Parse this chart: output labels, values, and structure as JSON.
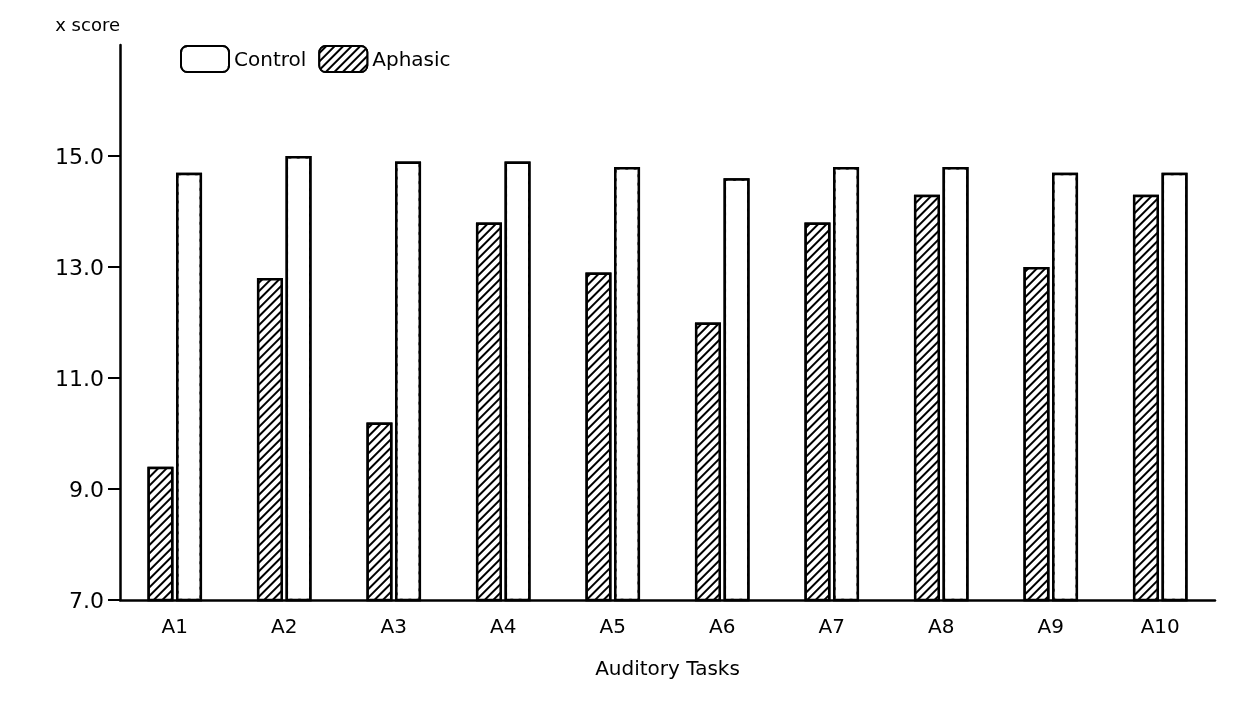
{
  "chart_data": {
    "type": "bar",
    "ylabel": "x score",
    "xlabel": "Auditory Tasks",
    "categories": [
      "A1",
      "A2",
      "A3",
      "A4",
      "A5",
      "A6",
      "A7",
      "A8",
      "A9",
      "A10"
    ],
    "series": [
      {
        "name": "Aphasic",
        "color": "#000000",
        "values": [
          9.4,
          12.8,
          10.2,
          13.8,
          12.9,
          12.0,
          13.8,
          14.3,
          13.0,
          14.3
        ]
      },
      {
        "name": "Control",
        "color": "#ffffff",
        "values": [
          14.7,
          15.0,
          14.9,
          14.9,
          14.8,
          14.6,
          14.8,
          14.8,
          14.7,
          14.7
        ]
      }
    ],
    "ylim": [
      7,
      17
    ],
    "yticks": [
      {
        "value": 7,
        "label": "7.0"
      },
      {
        "value": 9,
        "label": "9.0"
      },
      {
        "value": 11,
        "label": "11.0"
      },
      {
        "value": 13,
        "label": "13.0"
      },
      {
        "value": 15,
        "label": "15.0"
      }
    ],
    "grid": false,
    "legend": "top left"
  }
}
